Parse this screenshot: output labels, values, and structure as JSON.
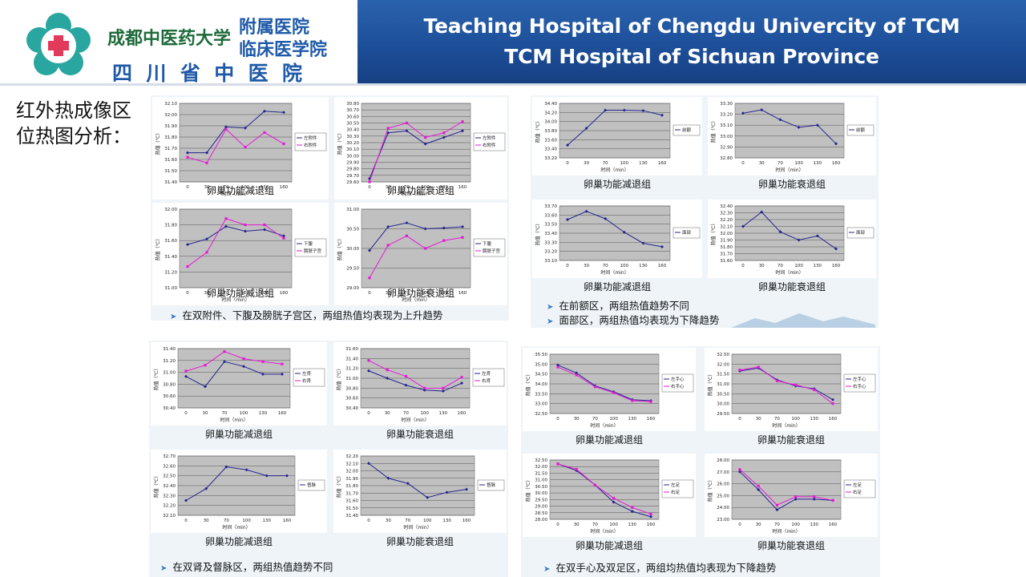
{
  "header": {
    "title_en_1": "Teaching Hospital of Chengdu Univercity of TCM",
    "title_en_2": "TCM Hospital of Sichuan Province",
    "logo_cn_1": "成都中医药大学",
    "logo_cn_2": "附属医院",
    "logo_cn_3": "临床医学院",
    "logo_cn_4": "四  川  省  中  医  院"
  },
  "side_label": {
    "line1": "红外热成像区",
    "line2": "位热图分析："
  },
  "colors": {
    "header_blue": "#1d4f99",
    "series_blue": "#23238e",
    "series_magenta": "#e619d6",
    "plot_gray": "#c0c0c0"
  },
  "common": {
    "xlabel": "时间（min）",
    "ylabel": "热值（℃）",
    "x": [
      0,
      30,
      70,
      100,
      130,
      160
    ]
  },
  "panels": [
    {
      "name": "panel-top-left",
      "note": "在双附件、下腹及膀胱子宫区，两组热值均表现为上升趋势",
      "charts": [
        {
          "caption": "卵巢功能减退组",
          "ticks": [
            "32.10",
            "32.00",
            "31.90",
            "31.80",
            "31.70",
            "31.60",
            "31.50",
            "31.40"
          ],
          "ymin": 31.4,
          "ymax": 32.1,
          "series": [
            {
              "name": "左附件",
              "color": "blue",
              "values": [
                31.66,
                31.66,
                31.89,
                31.88,
                32.03,
                32.02
              ]
            },
            {
              "name": "右附件",
              "color": "magenta",
              "values": [
                31.62,
                31.57,
                31.87,
                31.71,
                31.84,
                31.74
              ]
            }
          ]
        },
        {
          "caption": "卵巢功能衰退组",
          "ticks": [
            "30.80",
            "30.70",
            "30.60",
            "30.50",
            "30.40",
            "30.30",
            "30.20",
            "30.10",
            "30.00",
            "29.90",
            "29.80",
            "29.70",
            "29.60"
          ],
          "ymin": 29.6,
          "ymax": 30.8,
          "series": [
            {
              "name": "左附件",
              "color": "blue",
              "values": [
                29.65,
                30.35,
                30.38,
                30.18,
                30.28,
                30.38
              ]
            },
            {
              "name": "右附件",
              "color": "magenta",
              "values": [
                29.6,
                30.42,
                30.5,
                30.28,
                30.35,
                30.52
              ]
            }
          ]
        },
        {
          "caption": "卵巢功能减退组",
          "ticks": [
            "32.00",
            "31.80",
            "31.60",
            "31.40",
            "31.20",
            "31.00"
          ],
          "ymin": 31.0,
          "ymax": 32.0,
          "series": [
            {
              "name": "下腹",
              "color": "blue",
              "values": [
                31.55,
                31.62,
                31.78,
                31.72,
                31.74,
                31.66
              ]
            },
            {
              "name": "膀胱子宫",
              "color": "magenta",
              "values": [
                31.27,
                31.45,
                31.88,
                31.8,
                31.8,
                31.63
              ]
            }
          ]
        },
        {
          "caption": "卵巢功能衰退组",
          "ticks": [
            "31.00",
            "30.50",
            "30.00",
            "29.50",
            "29.00"
          ],
          "ymin": 29.0,
          "ymax": 31.0,
          "series": [
            {
              "name": "下腹",
              "color": "blue",
              "values": [
                29.95,
                30.55,
                30.65,
                30.5,
                30.52,
                30.55
              ]
            },
            {
              "name": "膀胱子宫",
              "color": "magenta",
              "values": [
                29.25,
                30.08,
                30.32,
                30.0,
                30.2,
                30.28
              ]
            }
          ]
        }
      ]
    },
    {
      "name": "panel-top-right",
      "note1": "在前额区，两组热值趋势不同",
      "note2": "面部区，两组热值均表现为下降趋势",
      "charts": [
        {
          "caption": "卵巢功能减退组",
          "ticks": [
            "34.40",
            "34.20",
            "34.00",
            "33.80",
            "33.60",
            "33.40",
            "33.20"
          ],
          "ymin": 33.2,
          "ymax": 34.4,
          "series": [
            {
              "name": "前额",
              "color": "blue",
              "values": [
                33.48,
                33.85,
                34.25,
                34.25,
                34.24,
                34.14
              ]
            }
          ]
        },
        {
          "caption": "卵巢功能衰退组",
          "ticks": [
            "33.30",
            "33.20",
            "33.10",
            "33.00",
            "32.90",
            "32.80"
          ],
          "ymin": 32.8,
          "ymax": 33.3,
          "series": [
            {
              "name": "前额",
              "color": "blue",
              "values": [
                33.21,
                33.24,
                33.15,
                33.08,
                33.1,
                32.93
              ]
            }
          ]
        },
        {
          "caption": "卵巢功能减退组",
          "ticks": [
            "33.70",
            "33.60",
            "33.50",
            "33.40",
            "33.30",
            "33.20",
            "33.10"
          ],
          "ymin": 33.1,
          "ymax": 33.7,
          "series": [
            {
              "name": "面部",
              "color": "blue",
              "values": [
                33.55,
                33.64,
                33.56,
                33.41,
                33.29,
                33.25
              ]
            }
          ]
        },
        {
          "caption": "卵巢功能衰退组",
          "ticks": [
            "32.40",
            "32.30",
            "32.20",
            "32.10",
            "32.00",
            "31.90",
            "31.80",
            "31.70",
            "31.60"
          ],
          "ymin": 31.6,
          "ymax": 32.4,
          "series": [
            {
              "name": "面部",
              "color": "blue",
              "values": [
                32.1,
                32.31,
                32.02,
                31.9,
                31.96,
                31.77
              ]
            }
          ]
        }
      ]
    },
    {
      "name": "panel-bottom-left",
      "note": "在双肾及督脉区，两组热值趋势不同",
      "charts": [
        {
          "caption": "卵巢功能减退组",
          "ticks": [
            "31.40",
            "31.20",
            "31.00",
            "30.80",
            "30.60",
            "30.40"
          ],
          "ymin": 30.4,
          "ymax": 31.4,
          "series": [
            {
              "name": "左肾",
              "color": "blue",
              "values": [
                30.93,
                30.76,
                31.18,
                31.1,
                30.97,
                30.97
              ]
            },
            {
              "name": "右肾",
              "color": "magenta",
              "values": [
                31.02,
                31.12,
                31.35,
                31.23,
                31.18,
                31.14
              ]
            }
          ]
        },
        {
          "caption": "卵巢功能衰退组",
          "ticks": [
            "31.60",
            "31.40",
            "31.20",
            "31.00",
            "30.80",
            "30.60",
            "30.40"
          ],
          "ymin": 30.4,
          "ymax": 31.6,
          "series": [
            {
              "name": "左肾",
              "color": "blue",
              "values": [
                31.15,
                31.0,
                30.86,
                30.76,
                30.74,
                30.9
              ]
            },
            {
              "name": "右肾",
              "color": "magenta",
              "values": [
                31.36,
                31.17,
                31.04,
                30.8,
                30.8,
                31.02
              ]
            }
          ]
        },
        {
          "caption": "卵巢功能减退组",
          "ticks": [
            "32.70",
            "32.60",
            "32.50",
            "32.40",
            "32.30",
            "32.20",
            "32.10"
          ],
          "ymin": 32.1,
          "ymax": 32.7,
          "series": [
            {
              "name": "督脉",
              "color": "blue",
              "values": [
                32.25,
                32.37,
                32.59,
                32.56,
                32.5,
                32.5
              ]
            }
          ]
        },
        {
          "caption": "卵巢功能衰退组",
          "ticks": [
            "32.20",
            "32.10",
            "32.00",
            "31.90",
            "31.80",
            "31.70",
            "31.60",
            "31.50",
            "31.40"
          ],
          "ymin": 31.4,
          "ymax": 32.2,
          "series": [
            {
              "name": "督脉",
              "color": "blue",
              "values": [
                32.1,
                31.9,
                31.83,
                31.64,
                31.71,
                31.75
              ]
            }
          ]
        }
      ]
    },
    {
      "name": "panel-bottom-right",
      "note": "在双手心及双足区，两组均热值均表现为下降趋势",
      "charts": [
        {
          "caption": "卵巢功能减退组",
          "ticks": [
            "35.50",
            "35.00",
            "34.50",
            "34.00",
            "33.50",
            "33.00",
            "32.50"
          ],
          "ymin": 32.5,
          "ymax": 35.5,
          "series": [
            {
              "name": "左手心",
              "color": "blue",
              "values": [
                34.95,
                34.55,
                33.9,
                33.6,
                33.2,
                33.15
              ]
            },
            {
              "name": "右手心",
              "color": "magenta",
              "values": [
                34.85,
                34.45,
                33.85,
                33.55,
                33.15,
                33.1
              ]
            }
          ]
        },
        {
          "caption": "卵巢功能衰退组",
          "ticks": [
            "32.50",
            "32.00",
            "31.50",
            "31.00",
            "30.50",
            "30.00",
            "29.50"
          ],
          "ymin": 29.5,
          "ymax": 32.5,
          "series": [
            {
              "name": "左手心",
              "color": "blue",
              "values": [
                31.65,
                31.8,
                31.2,
                30.9,
                30.75,
                30.2
              ]
            },
            {
              "name": "右手心",
              "color": "magenta",
              "values": [
                31.7,
                31.85,
                31.15,
                30.95,
                30.7,
                30.0
              ]
            }
          ]
        },
        {
          "caption": "卵巢功能减退组",
          "ticks": [
            "32.50",
            "32.00",
            "31.50",
            "31.00",
            "30.50",
            "30.00",
            "29.50",
            "29.00",
            "28.50",
            "28.00"
          ],
          "ymin": 28.0,
          "ymax": 32.5,
          "series": [
            {
              "name": "左足",
              "color": "blue",
              "values": [
                32.2,
                31.7,
                30.6,
                29.3,
                28.6,
                28.2
              ]
            },
            {
              "name": "右足",
              "color": "magenta",
              "values": [
                32.2,
                31.8,
                30.6,
                29.6,
                28.9,
                28.4
              ]
            }
          ]
        },
        {
          "caption": "卵巢功能衰退组",
          "ticks": [
            "28.00",
            "27.00",
            "26.00",
            "25.00",
            "24.00",
            "23.00"
          ],
          "ymin": 23.0,
          "ymax": 28.0,
          "series": [
            {
              "name": "左足",
              "color": "blue",
              "values": [
                27.0,
                25.5,
                23.8,
                24.7,
                24.7,
                24.6
              ]
            },
            {
              "name": "右足",
              "color": "magenta",
              "values": [
                27.2,
                25.8,
                24.2,
                24.9,
                24.9,
                24.6
              ]
            }
          ]
        }
      ]
    }
  ]
}
